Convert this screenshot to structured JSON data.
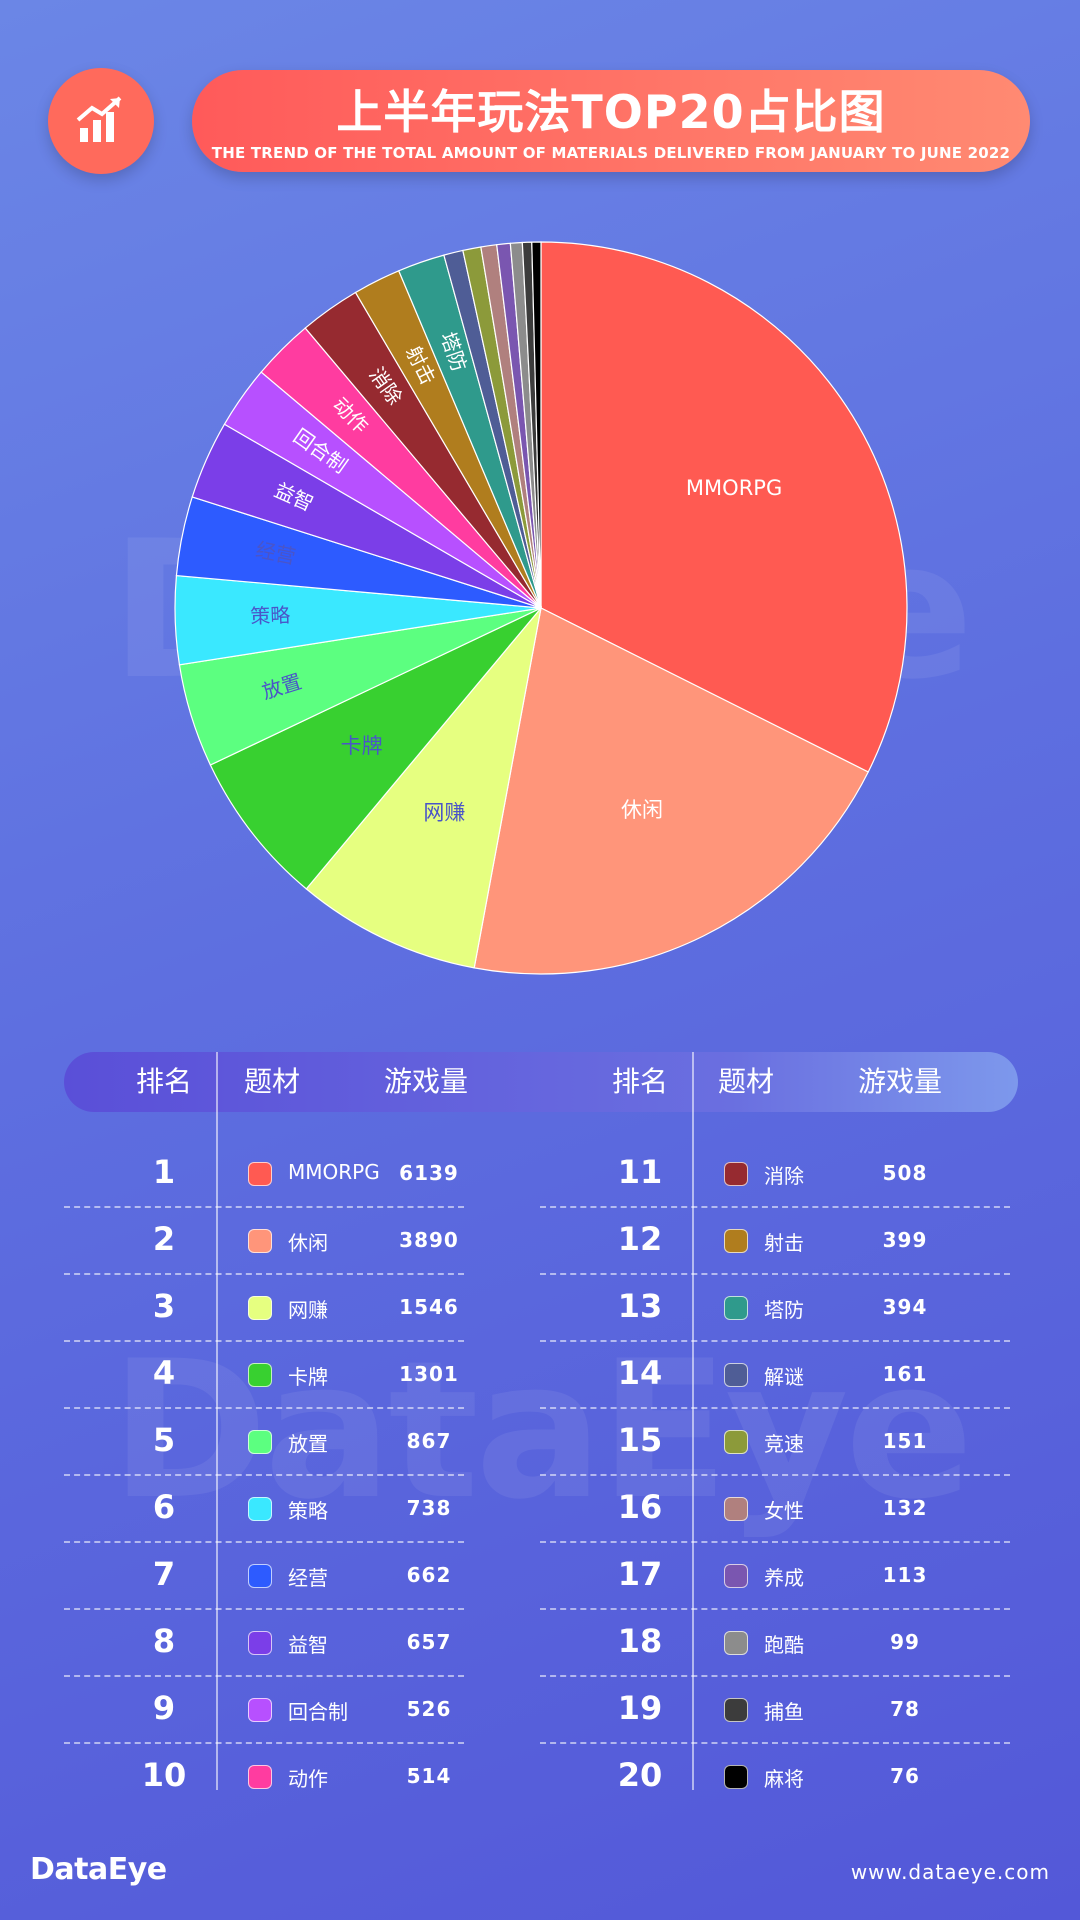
{
  "header": {
    "title": "上半年玩法TOP20占比图",
    "subtitle": "THE TREND OF THE TOTAL AMOUNT OF MATERIALS DELIVERED FROM JANUARY TO JUNE 2022",
    "icon": "chart-growth-icon"
  },
  "watermark": "DataEye",
  "table": {
    "headers": {
      "rank": "排名",
      "genre": "题材",
      "count": "游戏量"
    },
    "rows": [
      {
        "rank": "1",
        "name": "MMORPG",
        "value": "6139",
        "color": "#ff5a52"
      },
      {
        "rank": "2",
        "name": "休闲",
        "value": "3890",
        "color": "#ff957a"
      },
      {
        "rank": "3",
        "name": "网赚",
        "value": "1546",
        "color": "#e6ff80"
      },
      {
        "rank": "4",
        "name": "卡牌",
        "value": "1301",
        "color": "#38d030"
      },
      {
        "rank": "5",
        "name": "放置",
        "value": "867",
        "color": "#5cff80"
      },
      {
        "rank": "6",
        "name": "策略",
        "value": "738",
        "color": "#3ae8ff"
      },
      {
        "rank": "7",
        "name": "经营",
        "value": "662",
        "color": "#2d5bff"
      },
      {
        "rank": "8",
        "name": "益智",
        "value": "657",
        "color": "#7b3ee8"
      },
      {
        "rank": "9",
        "name": "回合制",
        "value": "526",
        "color": "#b750ff"
      },
      {
        "rank": "10",
        "name": "动作",
        "value": "514",
        "color": "#ff3ca0"
      },
      {
        "rank": "11",
        "name": "消除",
        "value": "508",
        "color": "#962a30"
      },
      {
        "rank": "12",
        "name": "射击",
        "value": "399",
        "color": "#b07d1e"
      },
      {
        "rank": "13",
        "name": "塔防",
        "value": "394",
        "color": "#2f9a8c"
      },
      {
        "rank": "14",
        "name": "解谜",
        "value": "161",
        "color": "#4f5d96"
      },
      {
        "rank": "15",
        "name": "竞速",
        "value": "151",
        "color": "#8c9a3a"
      },
      {
        "rank": "16",
        "name": "女性",
        "value": "132",
        "color": "#b0807e"
      },
      {
        "rank": "17",
        "name": "养成",
        "value": "113",
        "color": "#7a56b0"
      },
      {
        "rank": "18",
        "name": "跑酷",
        "value": "99",
        "color": "#8c8c8c"
      },
      {
        "rank": "19",
        "name": "捕鱼",
        "value": "78",
        "color": "#3c3c3c"
      },
      {
        "rank": "20",
        "name": "麻将",
        "value": "76",
        "color": "#000000"
      }
    ]
  },
  "chart_data": {
    "type": "pie",
    "title": "上半年玩法TOP20占比图",
    "categories": [
      "MMORPG",
      "休闲",
      "网赚",
      "卡牌",
      "放置",
      "策略",
      "经营",
      "益智",
      "回合制",
      "动作",
      "消除",
      "射击",
      "塔防",
      "解谜",
      "竞速",
      "女性",
      "养成",
      "跑酷",
      "捕鱼",
      "麻将"
    ],
    "values": [
      6139,
      3890,
      1546,
      1301,
      867,
      738,
      662,
      657,
      526,
      514,
      508,
      399,
      394,
      161,
      151,
      132,
      113,
      99,
      78,
      76
    ],
    "colors": [
      "#ff5a52",
      "#ff957a",
      "#e6ff80",
      "#38d030",
      "#5cff80",
      "#3ae8ff",
      "#2d5bff",
      "#7b3ee8",
      "#b750ff",
      "#ff3ca0",
      "#962a30",
      "#b07d1e",
      "#2f9a8c",
      "#4f5d96",
      "#8c9a3a",
      "#b0807e",
      "#7a56b0",
      "#8c8c8c",
      "#3c3c3c",
      "#000000"
    ],
    "labeled": [
      "MMORPG",
      "休闲",
      "网赚",
      "卡牌",
      "放置",
      "策略",
      "经营",
      "益智",
      "回合制",
      "动作",
      "消除",
      "射击",
      "塔防"
    ],
    "label_dark": [
      "网赚",
      "卡牌",
      "放置",
      "策略",
      "经营"
    ]
  },
  "footer": {
    "logo": "DataEye",
    "url": "www.dataeye.com"
  }
}
